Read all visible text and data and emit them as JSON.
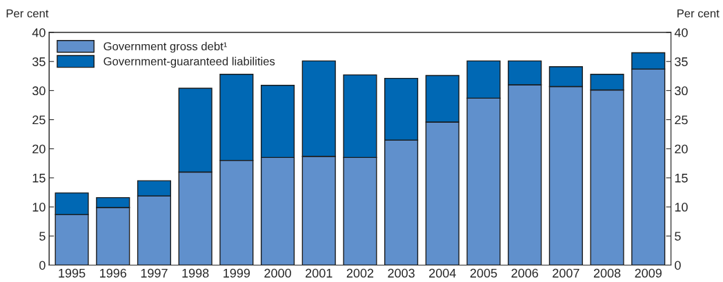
{
  "chart_data": {
    "type": "bar",
    "stacked": true,
    "ylabel": "Per cent",
    "y2label": "Per cent",
    "categories": [
      "1995",
      "1996",
      "1997",
      "1998",
      "1999",
      "2000",
      "2001",
      "2002",
      "2003",
      "2004",
      "2005",
      "2006",
      "2007",
      "2008",
      "2009"
    ],
    "series": [
      {
        "name": "Government gross debt¹",
        "color": "#6090cc",
        "values": [
          8.7,
          9.9,
          11.9,
          16.0,
          18.0,
          18.5,
          18.7,
          18.5,
          21.5,
          24.6,
          28.7,
          31.0,
          30.7,
          30.1,
          33.7
        ]
      },
      {
        "name": "Government-guaranteed liabilities",
        "color": "#0068b4",
        "values": [
          3.7,
          1.7,
          2.6,
          14.4,
          14.8,
          12.4,
          16.4,
          14.2,
          10.6,
          8.0,
          6.4,
          4.1,
          3.4,
          2.7,
          2.8
        ]
      }
    ],
    "ylim": [
      0,
      40
    ],
    "yticks": [
      0,
      5,
      10,
      15,
      20,
      25,
      30,
      35,
      40
    ],
    "y2lim": [
      0,
      40
    ],
    "y2ticks": [
      0,
      5,
      10,
      15,
      20,
      25,
      30,
      35,
      40
    ],
    "legend": "top left",
    "grid": false
  }
}
